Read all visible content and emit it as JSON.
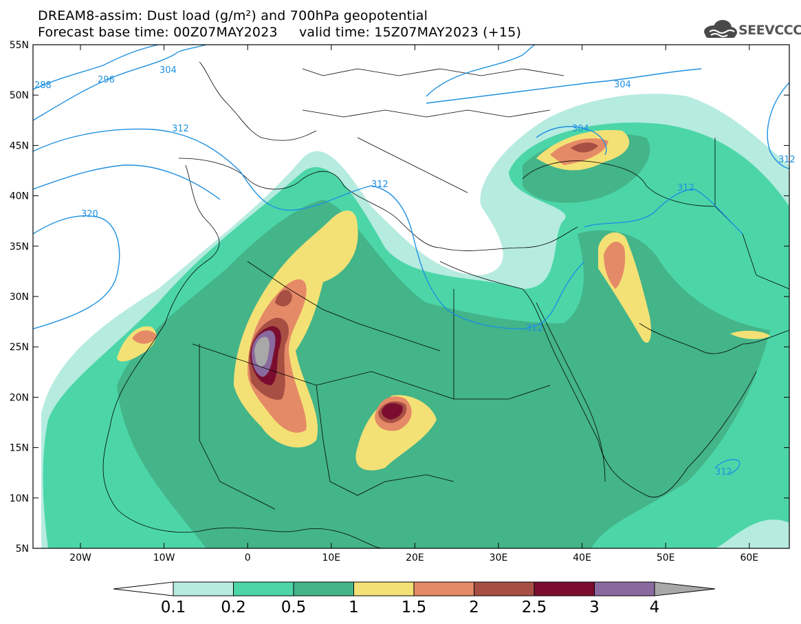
{
  "header": {
    "title_line1": "DREAM8-assim: Dust load (g/m²) and 700hPa geopotential",
    "title_line2": "Forecast base time: 00Z07MAY2023     valid time: 15Z07MAY2023 (+15)",
    "logo_text": "SEEVCCC"
  },
  "map": {
    "lat_labels": [
      "55N",
      "50N",
      "45N",
      "40N",
      "35N",
      "30N",
      "25N",
      "20N",
      "15N",
      "10N",
      "5N"
    ],
    "lon_labels": [
      "20W",
      "10W",
      "0",
      "10E",
      "20E",
      "30E",
      "40E",
      "50E",
      "60E"
    ],
    "contour_labels": [
      "288",
      "296",
      "304",
      "312",
      "320",
      "312",
      "304",
      "312",
      "304",
      "312",
      "312",
      "312"
    ],
    "contour_color": "#1e90e0"
  },
  "colorbar": {
    "labels": [
      "0.1",
      "0.2",
      "0.5",
      "1",
      "1.5",
      "2",
      "2.5",
      "3",
      "4"
    ],
    "colors": [
      "#ffffff",
      "#b6ebe0",
      "#4cd6a8",
      "#44b489",
      "#f4e175",
      "#e58a66",
      "#a84f44",
      "#7b0e2e",
      "#8a6a9e",
      "#a8a8a8"
    ]
  }
}
